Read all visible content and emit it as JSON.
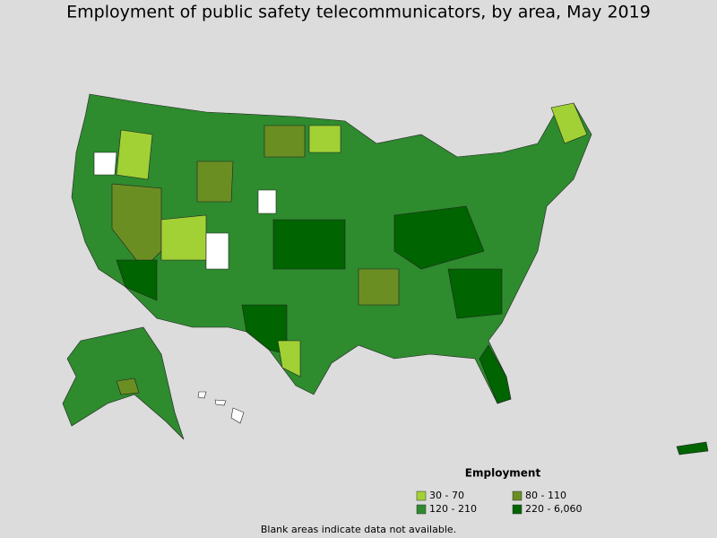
{
  "title": "Employment of public safety telecommunicators, by area, May 2019",
  "legend": {
    "title": "Employment",
    "items": [
      {
        "label": "30 - 70",
        "color": "#a2d136"
      },
      {
        "label": "80 - 110",
        "color": "#6b8e23"
      },
      {
        "label": "120 - 210",
        "color": "#2e8b2e"
      },
      {
        "label": "220 - 6,060",
        "color": "#006400"
      }
    ]
  },
  "footnote": "Blank areas indicate data not available."
}
